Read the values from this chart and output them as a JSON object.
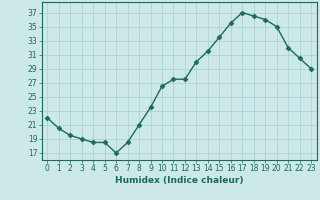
{
  "x": [
    0,
    1,
    2,
    3,
    4,
    5,
    6,
    7,
    8,
    9,
    10,
    11,
    12,
    13,
    14,
    15,
    16,
    17,
    18,
    19,
    20,
    21,
    22,
    23
  ],
  "y": [
    22,
    20.5,
    19.5,
    19,
    18.5,
    18.5,
    17,
    18.5,
    21,
    23.5,
    26.5,
    27.5,
    27.5,
    30,
    31.5,
    33.5,
    35.5,
    37,
    36.5,
    36,
    35,
    32,
    30.5,
    29
  ],
  "line_color": "#1a6b5a",
  "marker": "D",
  "marker_size": 2.5,
  "line_width": 1.0,
  "bg_color": "#cce8e8",
  "grid_color": "#aacece",
  "xlabel": "Humidex (Indice chaleur)",
  "ylabel_ticks": [
    17,
    19,
    21,
    23,
    25,
    27,
    29,
    31,
    33,
    35,
    37
  ],
  "xlim": [
    -0.5,
    23.5
  ],
  "ylim": [
    16.0,
    38.5
  ],
  "xticks": [
    0,
    1,
    2,
    3,
    4,
    5,
    6,
    7,
    8,
    9,
    10,
    11,
    12,
    13,
    14,
    15,
    16,
    17,
    18,
    19,
    20,
    21,
    22,
    23
  ],
  "tick_fontsize": 5.5,
  "xlabel_fontsize": 6.5
}
